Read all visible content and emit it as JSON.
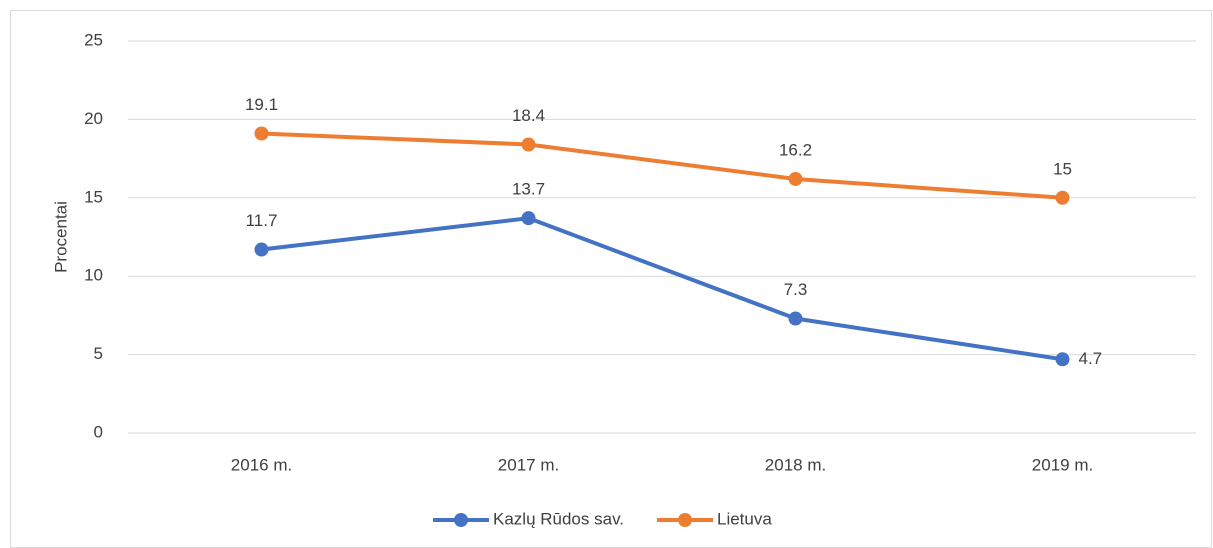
{
  "chart_data": {
    "type": "line",
    "y_label": "Procentai",
    "categories": [
      "2016 m.",
      "2017 m.",
      "2018 m.",
      "2019 m."
    ],
    "series": [
      {
        "name": "Kazlų Rūdos sav.",
        "color": "#4472c4",
        "values": [
          11.7,
          13.7,
          7.3,
          4.7
        ]
      },
      {
        "name": "Lietuva",
        "color": "#ed7d31",
        "values": [
          19.1,
          18.4,
          16.2,
          15
        ]
      }
    ],
    "ylim": [
      0,
      25
    ],
    "yticks": [
      0,
      5,
      10,
      15,
      20,
      25
    ],
    "grid": true,
    "legend": "bottom"
  }
}
